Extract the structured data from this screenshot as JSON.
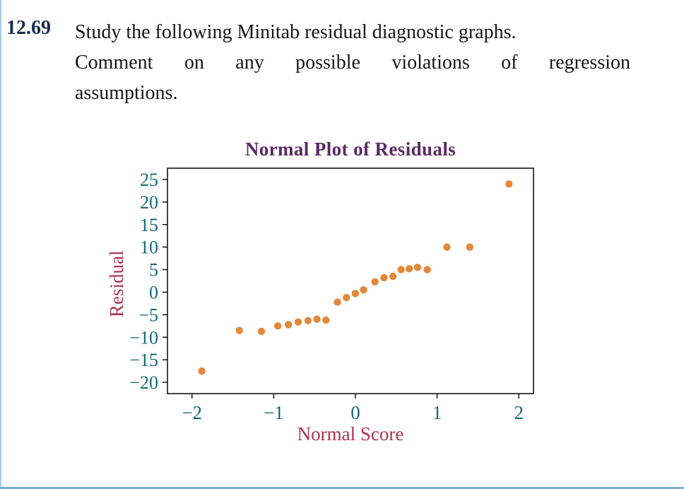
{
  "problem": {
    "number": "12.69",
    "line1": "Study the following Minitab residual diagnostic graphs.",
    "line2": "Comment on any possible violations of regression",
    "line3": "assumptions."
  },
  "colors": {
    "background": "#ffffff",
    "text": "#161616",
    "problem_number": "#1b2c4f",
    "title_purple": "#5b2a64",
    "axis_label_crimson": "#ab3352",
    "tick_teal": "#15687d",
    "point_orange": "#e2893b",
    "frame_black": "#141414",
    "page_edge_blue": "#79aed3",
    "page_edge_light": "#a9cce6"
  },
  "chart_data": {
    "type": "scatter",
    "title": "Normal Plot of Residuals",
    "xlabel": "Normal Score",
    "ylabel": "Residual",
    "xlim": [
      -2.3,
      2.18
    ],
    "ylim": [
      -22.5,
      27.5
    ],
    "x_ticks": [
      -2,
      -1,
      0,
      1,
      2
    ],
    "y_ticks": [
      25,
      20,
      15,
      10,
      5,
      0,
      -5,
      -10,
      -15,
      -20
    ],
    "grid": false,
    "legend": "none",
    "point_radius": 5.2,
    "points": [
      [
        -1.88,
        -17.5
      ],
      [
        -1.42,
        -8.5
      ],
      [
        -1.15,
        -8.7
      ],
      [
        -0.95,
        -7.5
      ],
      [
        -0.82,
        -7.2
      ],
      [
        -0.7,
        -6.6
      ],
      [
        -0.58,
        -6.3
      ],
      [
        -0.47,
        -6.0
      ],
      [
        -0.36,
        -6.2
      ],
      [
        -0.22,
        -2.2
      ],
      [
        -0.11,
        -1.2
      ],
      [
        0.0,
        -0.3
      ],
      [
        0.1,
        0.5
      ],
      [
        0.24,
        2.3
      ],
      [
        0.35,
        3.2
      ],
      [
        0.46,
        3.5
      ],
      [
        0.56,
        5.0
      ],
      [
        0.66,
        5.2
      ],
      [
        0.76,
        5.5
      ],
      [
        0.88,
        5.0
      ],
      [
        1.12,
        10.0
      ],
      [
        1.4,
        10.0
      ],
      [
        1.88,
        24.0
      ]
    ]
  }
}
